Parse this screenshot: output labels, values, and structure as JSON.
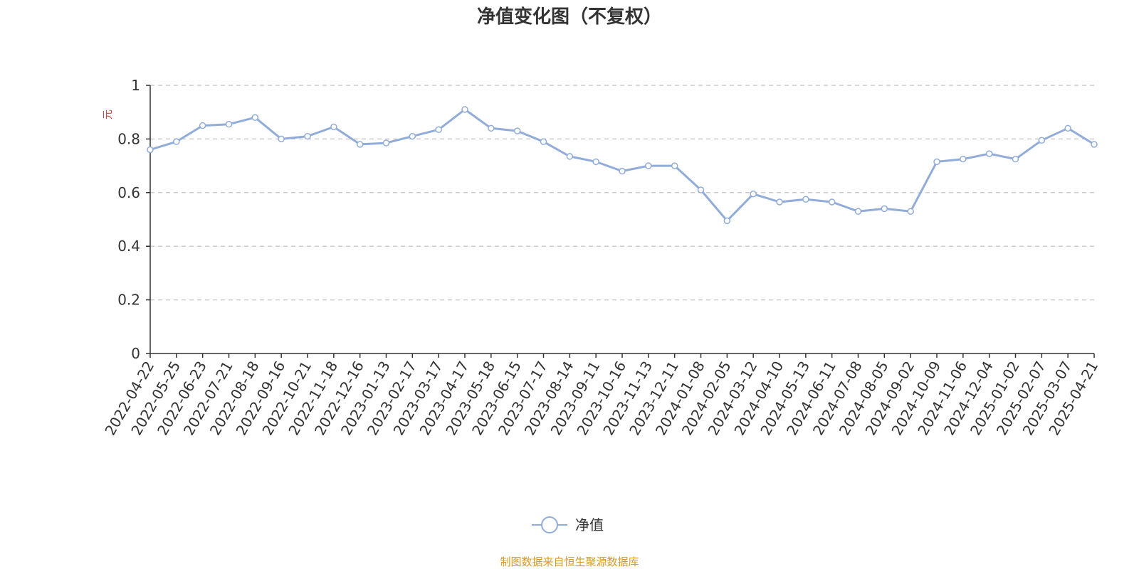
{
  "chart_data": {
    "type": "line",
    "title": "净值变化图（不复权）",
    "ylabel": "元",
    "ylim": [
      0,
      1
    ],
    "y_ticks": [
      "0",
      "0.2",
      "0.4",
      "0.6",
      "0.8",
      "1"
    ],
    "grid": true,
    "legend_position": "bottom-center",
    "x_tick_labels": [
      "2022-04-22",
      "2022-05-25",
      "2022-06-23",
      "2022-07-21",
      "2022-08-18",
      "2022-09-16",
      "2022-10-21",
      "2022-11-18",
      "2022-12-16",
      "2023-01-13",
      "2023-02-17",
      "2023-03-17",
      "2023-04-17",
      "2023-05-18",
      "2023-06-15",
      "2023-07-17",
      "2023-08-14",
      "2023-09-11",
      "2023-10-16",
      "2023-11-13",
      "2023-12-11",
      "2024-01-08",
      "2024-02-05",
      "2024-03-12",
      "2024-04-10",
      "2024-05-13",
      "2024-06-11",
      "2024-07-08",
      "2024-08-05",
      "2024-09-02",
      "2024-10-09",
      "2024-11-06",
      "2024-12-04",
      "2025-01-02",
      "2025-02-07",
      "2025-03-07",
      "2025-04-21"
    ],
    "series": [
      {
        "name": "净值",
        "color": "#91acd9",
        "x": [
          "2022-04-22",
          "2022-05-25",
          "2022-06-23",
          "2022-07-21",
          "2022-08-18",
          "2022-09-16",
          "2022-10-21",
          "2022-11-18",
          "2022-12-16",
          "2023-01-13",
          "2023-02-17",
          "2023-03-17",
          "2023-04-17",
          "2023-05-18",
          "2023-06-15",
          "2023-07-17",
          "2023-08-14",
          "2023-09-11",
          "2023-10-16",
          "2023-11-13",
          "2023-12-11",
          "2024-01-08",
          "2024-02-05",
          "2024-03-12",
          "2024-04-10",
          "2024-05-13",
          "2024-06-11",
          "2024-07-08",
          "2024-08-05",
          "2024-09-02",
          "2024-10-09",
          "2024-11-06",
          "2024-12-04",
          "2025-01-02",
          "2025-02-07",
          "2025-03-07",
          "2025-04-21"
        ],
        "values": [
          0.76,
          0.79,
          0.85,
          0.855,
          0.88,
          0.8,
          0.81,
          0.845,
          0.78,
          0.785,
          0.81,
          0.835,
          0.91,
          0.84,
          0.83,
          0.79,
          0.735,
          0.715,
          0.68,
          0.7,
          0.7,
          0.61,
          0.495,
          0.595,
          0.565,
          0.575,
          0.565,
          0.53,
          0.54,
          0.53,
          0.715,
          0.725,
          0.745,
          0.725,
          0.795,
          0.84,
          0.78
        ]
      }
    ]
  },
  "legend": {
    "label": "净值"
  },
  "source_text": "制图数据来自恒生聚源数据库",
  "colors": {
    "line": "#91acd9",
    "axis": "#333333",
    "grid": "#cccccc",
    "unit_label": "#e83a3a",
    "source": "#d99a1f"
  }
}
